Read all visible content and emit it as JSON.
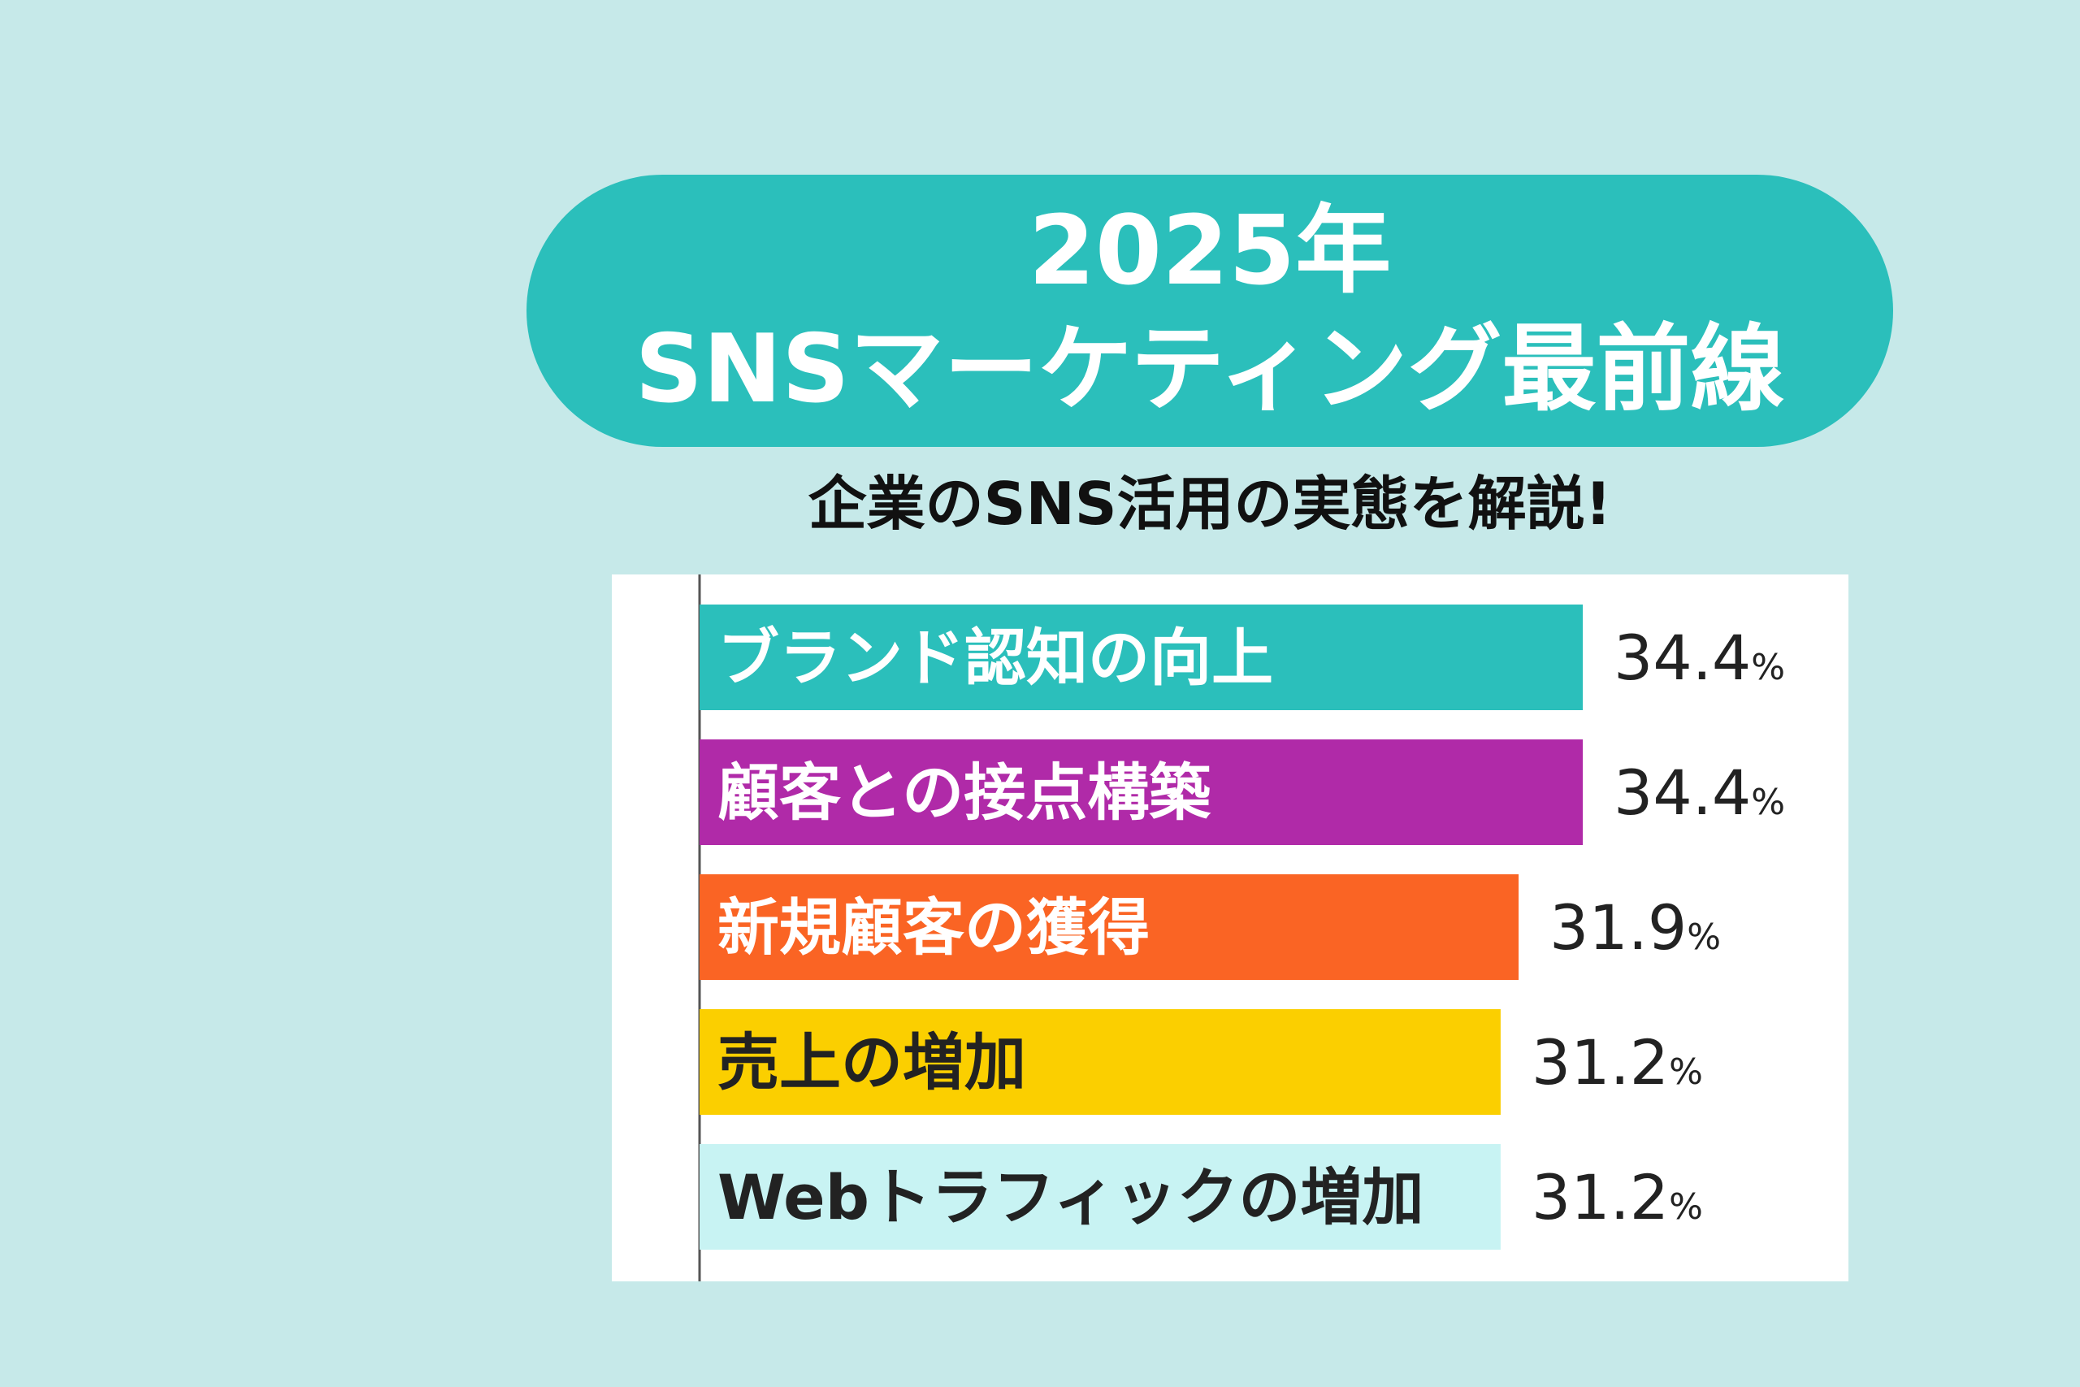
{
  "header": {
    "title_line1": "2025年",
    "title_line2": "SNSマーケティング最前線",
    "subtitle": "企業のSNS活用の実態を解説!"
  },
  "colors": {
    "background": "#c6e9e9",
    "title_pill": "#2bbfbb"
  },
  "chart_data": {
    "type": "bar",
    "orientation": "horizontal",
    "categories": [
      "ブランド認知の向上",
      "顧客との接点構築",
      "新規顧客の獲得",
      "売上の増加",
      "Webトラフィックの増加"
    ],
    "values": [
      34.4,
      34.4,
      31.9,
      31.2,
      31.2
    ],
    "value_labels": [
      "34.4",
      "34.4",
      "31.9",
      "31.2",
      "31.2"
    ],
    "unit": "%",
    "bar_colors": [
      "#2bbfbb",
      "#b02aa8",
      "#fa6424",
      "#fbcf00",
      "#c8f3f3"
    ],
    "label_colors": [
      "#ffffff",
      "#ffffff",
      "#ffffff",
      "#222222",
      "#222222"
    ],
    "title": "",
    "xlabel": "",
    "ylabel": "",
    "grid": false,
    "legend": "none"
  }
}
